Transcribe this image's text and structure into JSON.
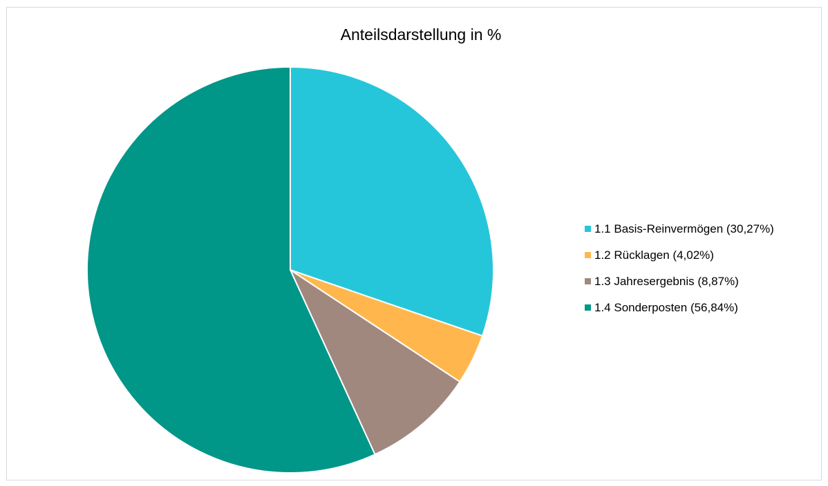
{
  "chart_data": {
    "type": "pie",
    "title": "Anteilsdarstellung in %",
    "legend_position": "right",
    "slices": [
      {
        "label": "1.1 Basis-Reinvermögen (30,27%)",
        "value": 30.27,
        "color": "#26c6da"
      },
      {
        "label": "1.2 Rücklagen (4,02%)",
        "value": 4.02,
        "color": "#ffb74d"
      },
      {
        "label": "1.3 Jahresergebnis (8,87%)",
        "value": 8.87,
        "color": "#a1887f"
      },
      {
        "label": "1.4 Sonderposten (56,84%)",
        "value": 56.84,
        "color": "#009688"
      }
    ]
  }
}
